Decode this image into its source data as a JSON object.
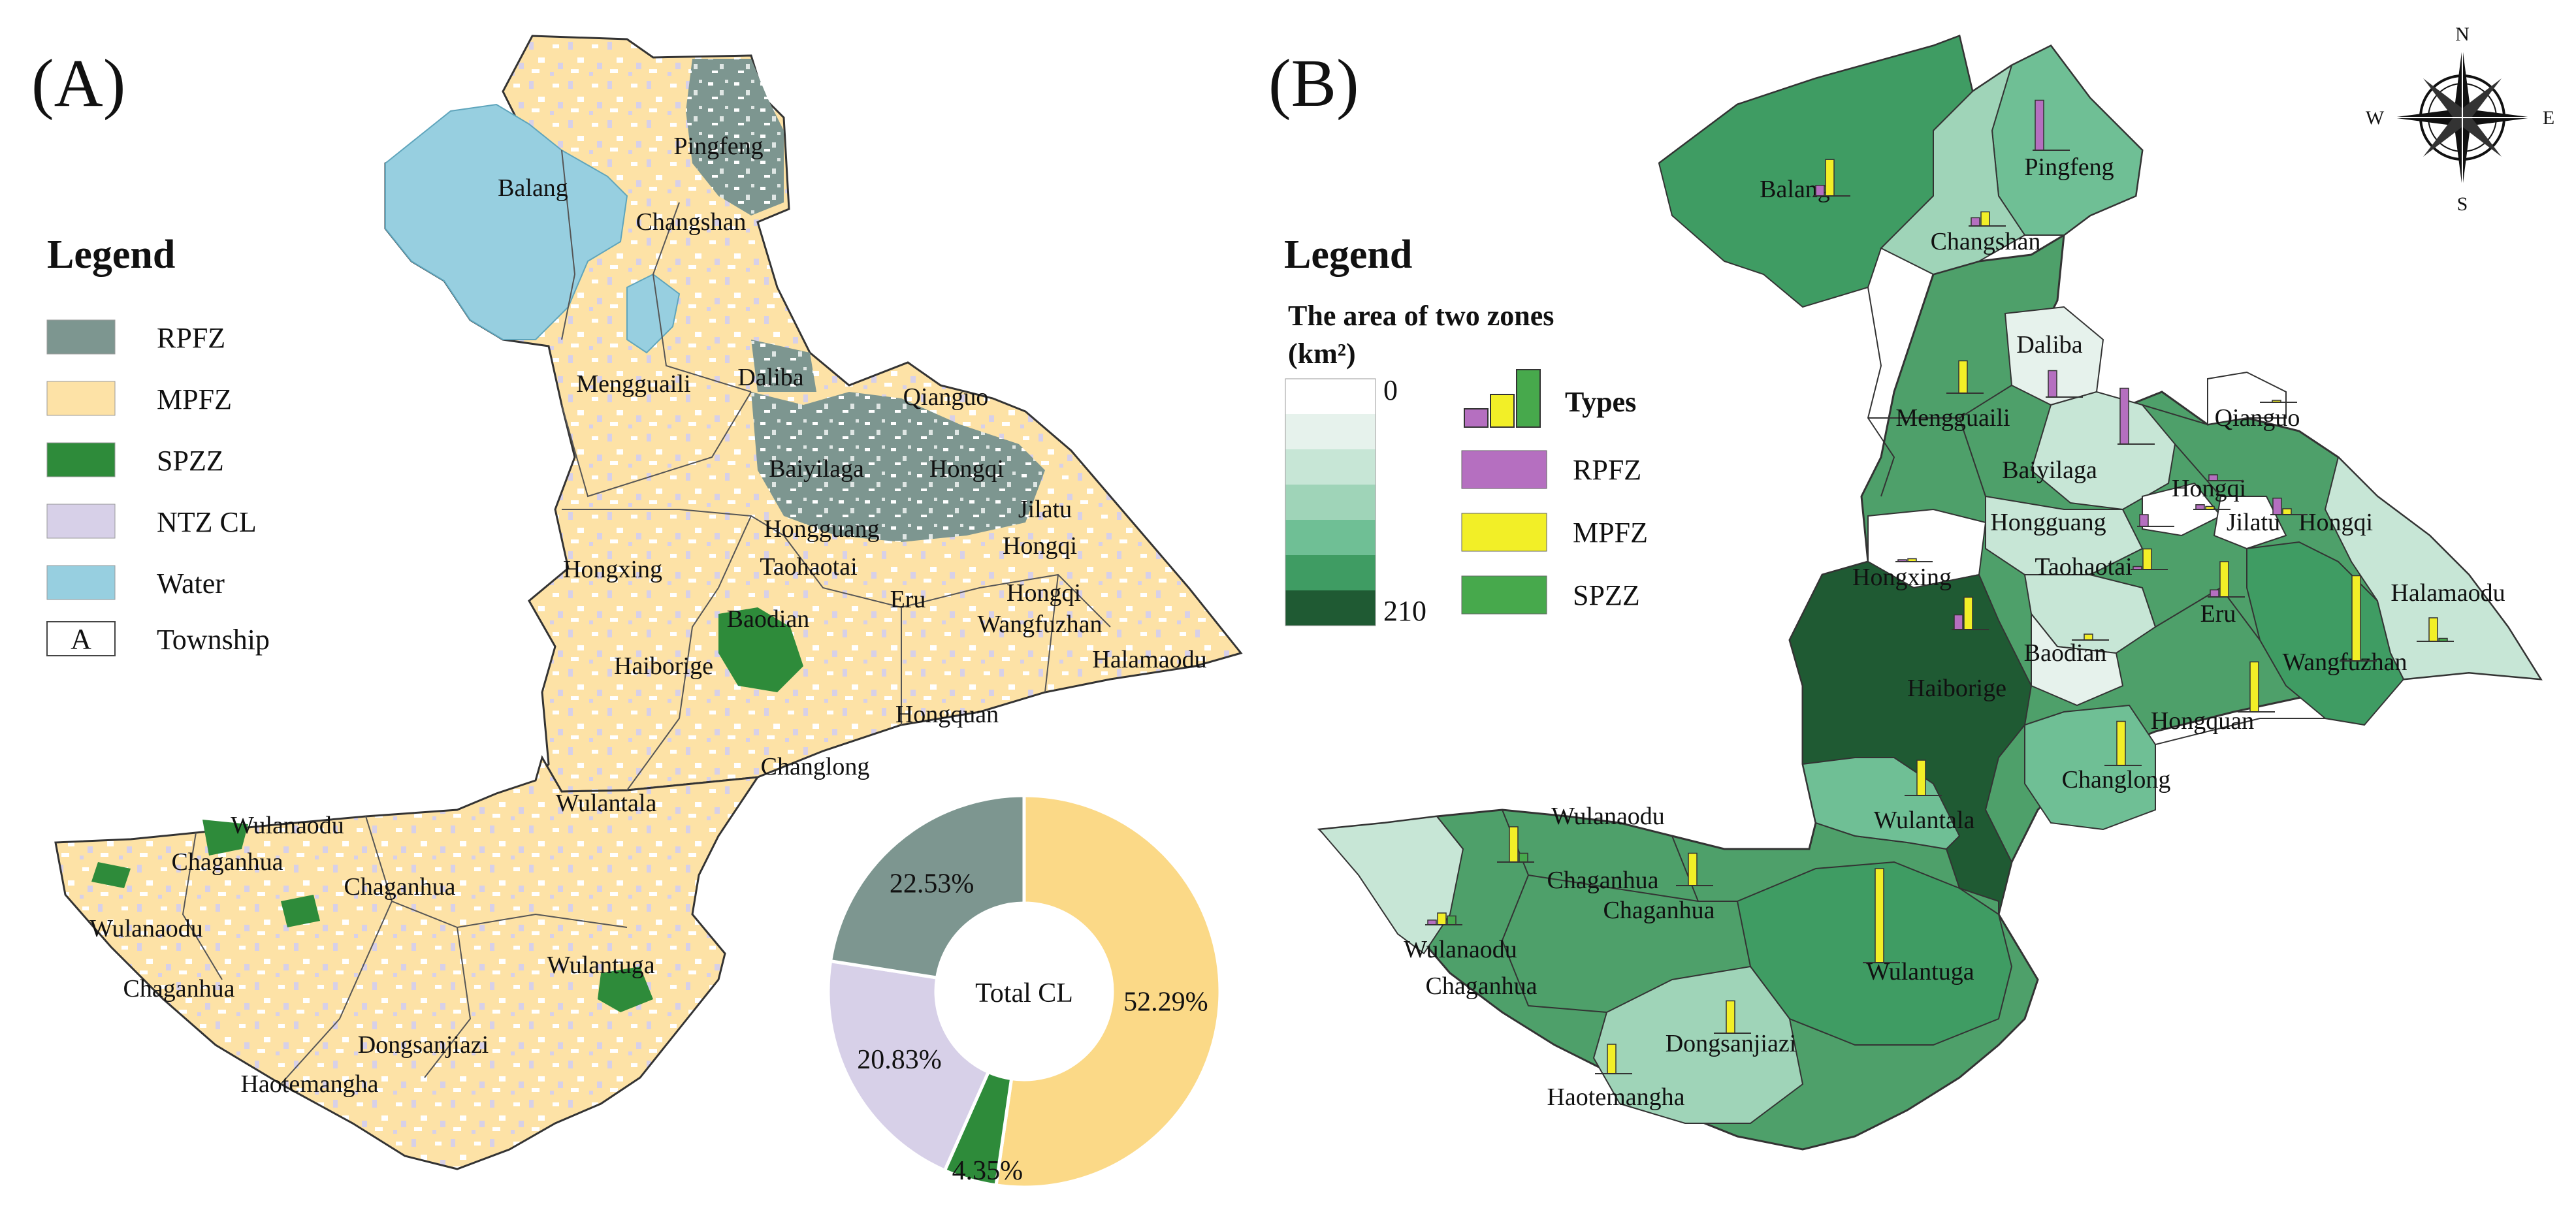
{
  "panels": {
    "a": {
      "label": "(A)",
      "legend": {
        "title": "Legend",
        "items": [
          {
            "key": "rpfz",
            "label": "RPFZ",
            "color": "#7d9690"
          },
          {
            "key": "mpfz",
            "label": "MPFZ",
            "color": "#fde2a6"
          },
          {
            "key": "spzz",
            "label": "SPZZ",
            "color": "#2e8b3a"
          },
          {
            "key": "ntz",
            "label": "NTZ CL",
            "color": "#d7d0e8"
          },
          {
            "key": "water",
            "label": "Water",
            "color": "#97cfe0"
          }
        ],
        "township_symbol": "A",
        "township_label": "Township"
      },
      "townships": [
        "Pingfeng",
        "Balang",
        "Changshan",
        "Daliba",
        "Qianguo",
        "Mengguaili",
        "Baiyilaga",
        "Hongqi",
        "Hongguang",
        "Jilatu",
        "Hongqi",
        "Hongxing",
        "Taohaotai",
        "Eru",
        "Hongqi",
        "Wangfuzhan",
        "Baodian",
        "Haiborige",
        "Halamaodu",
        "Hongquan",
        "Changlong",
        "Wulantala",
        "Wulanaodu",
        "Chaganhua",
        "Chaganhua",
        "Wulanaodu",
        "Chaganhua",
        "Wulantuga",
        "Dongsanjiazi",
        "Haotemangha"
      ],
      "donut": {
        "center_label": "Total CL",
        "segments": [
          {
            "label": "52.29%",
            "value": 52.29,
            "color": "#fbd987"
          },
          {
            "label": "4.35%",
            "value": 4.35,
            "color": "#2e8b3a"
          },
          {
            "label": "20.83%",
            "value": 20.83,
            "color": "#d7d0e8"
          },
          {
            "label": "22.53%",
            "value": 22.53,
            "color": "#7d9690"
          }
        ]
      }
    },
    "b": {
      "label": "(B)",
      "legend": {
        "title": "Legend",
        "subtitle_line1": "The area of two zones",
        "subtitle_line2": "(km²)",
        "scale_min": "0",
        "scale_max": "210",
        "scale_colors": [
          "#ffffff",
          "#e6f2ec",
          "#c7e6d6",
          "#9fd4b8",
          "#6fbf95",
          "#3f9c63",
          "#1f5a33"
        ],
        "types_title": "Types",
        "types": [
          {
            "key": "rpfz",
            "label": "RPFZ",
            "color": "#b56fc0"
          },
          {
            "key": "mpfz",
            "label": "MPFZ",
            "color": "#f2ef27"
          },
          {
            "key": "spzz",
            "label": "SPZZ",
            "color": "#47a94c"
          }
        ]
      },
      "compass": {
        "n": "N",
        "s": "S",
        "e": "E",
        "w": "W"
      },
      "townships": [
        "Pingfeng",
        "Balang",
        "Changshan",
        "Daliba",
        "Mengguaili",
        "Qianguo",
        "Baiyilaga",
        "Hongqi",
        "Hongguang",
        "Jilatu",
        "Hongqi",
        "Hongxing",
        "Taohaotai",
        "Eru",
        "Halamaodu",
        "Baodian",
        "Haiborige",
        "Wangfuzhan",
        "Hongquan",
        "Changlong",
        "Wulantala",
        "Wulanaodu",
        "Chaganhua",
        "Chaganhua",
        "Wulanaodu",
        "Wulantuga",
        "Chaganhua",
        "Dongsanjiazi",
        "Haotemangha"
      ],
      "zone_bars": [
        {
          "r": 18,
          "m": 62,
          "s": 0
        },
        {
          "r": 85,
          "m": 0,
          "s": 0
        },
        {
          "r": 14,
          "m": 24,
          "s": 0
        },
        {
          "r": 45,
          "m": 0,
          "s": 0
        },
        {
          "r": 0,
          "m": 55,
          "s": 0
        },
        {
          "r": 0,
          "m": 3,
          "s": 0
        },
        {
          "r": 95,
          "m": 0,
          "s": 0
        },
        {
          "r": 10,
          "m": 0,
          "s": 0
        },
        {
          "r": 20,
          "m": 0,
          "s": 0
        },
        {
          "r": 28,
          "m": 10,
          "s": 0
        },
        {
          "r": 8,
          "m": 5,
          "s": 0
        },
        {
          "r": 3,
          "m": 5,
          "s": 0
        },
        {
          "r": 5,
          "m": 35,
          "s": 0
        },
        {
          "r": 12,
          "m": 60,
          "s": 0
        },
        {
          "r": 0,
          "m": 40,
          "s": 5
        },
        {
          "r": 0,
          "m": 10,
          "s": 0
        },
        {
          "r": 25,
          "m": 55,
          "s": 0
        },
        {
          "r": 0,
          "m": 145,
          "s": 0
        },
        {
          "r": 0,
          "m": 85,
          "s": 0
        },
        {
          "r": 0,
          "m": 75,
          "s": 0
        },
        {
          "r": 0,
          "m": 60,
          "s": 0
        },
        {
          "r": 0,
          "m": 60,
          "s": 15
        },
        {
          "r": 8,
          "m": 20,
          "s": 15
        },
        {
          "r": 0,
          "m": 55,
          "s": 0
        },
        {
          "r": 0,
          "m": 160,
          "s": 0
        },
        {
          "r": 0,
          "m": 55,
          "s": 0
        },
        {
          "r": 0,
          "m": 50,
          "s": 0
        }
      ]
    }
  }
}
